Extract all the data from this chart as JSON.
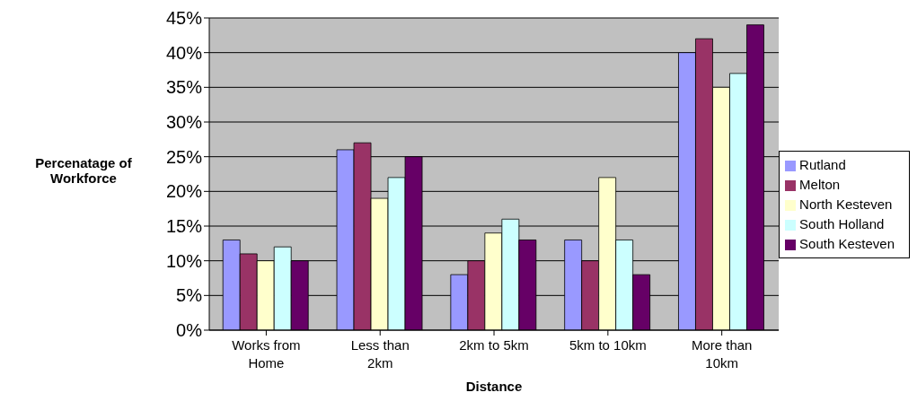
{
  "chart_data": {
    "type": "bar",
    "xlabel": "Distance",
    "ylabel": "Percenatage of Workforce",
    "categories": [
      "Works from Home",
      "Less than 2km",
      "2km to 5km",
      "5km to 10km",
      "More than 10km"
    ],
    "series": [
      {
        "name": "Rutland",
        "color": "#9999ff",
        "values": [
          13,
          26,
          8,
          13,
          40
        ]
      },
      {
        "name": "Melton",
        "color": "#993366",
        "values": [
          11,
          27,
          10,
          10,
          42
        ]
      },
      {
        "name": "North Kesteven",
        "color": "#ffffcc",
        "values": [
          10,
          19,
          14,
          22,
          35
        ]
      },
      {
        "name": "South Holland",
        "color": "#ccffff",
        "values": [
          12,
          22,
          16,
          13,
          37
        ]
      },
      {
        "name": "South Kesteven",
        "color": "#660066",
        "values": [
          10,
          25,
          13,
          8,
          44
        ]
      }
    ],
    "ylim": [
      0,
      45
    ],
    "yticks": [
      {
        "value": 0,
        "label": "0%"
      },
      {
        "value": 5,
        "label": "5%"
      },
      {
        "value": 10,
        "label": "10%"
      },
      {
        "value": 15,
        "label": "15%"
      },
      {
        "value": 20,
        "label": "20%"
      },
      {
        "value": 25,
        "label": "25%"
      },
      {
        "value": 30,
        "label": "30%"
      },
      {
        "value": 35,
        "label": "35%"
      },
      {
        "value": 40,
        "label": "40%"
      },
      {
        "value": 45,
        "label": "45%"
      }
    ],
    "grid": "y",
    "legend": "right"
  }
}
